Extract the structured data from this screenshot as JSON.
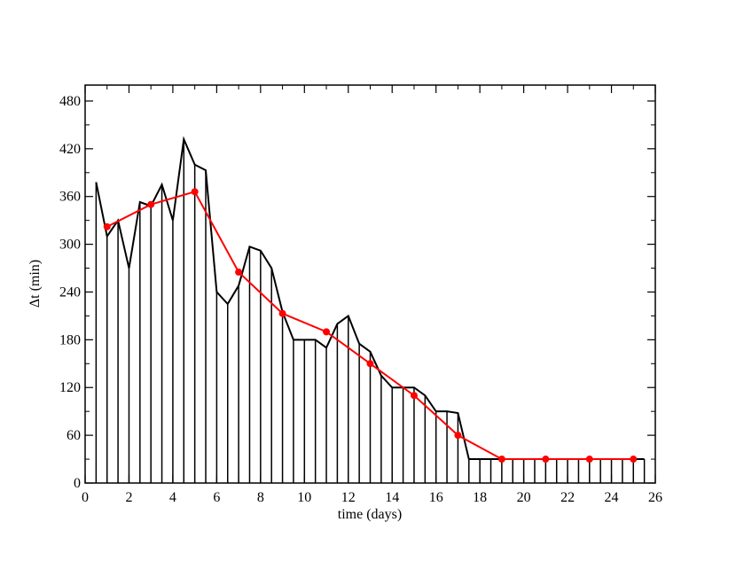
{
  "chart_data": {
    "type": "line",
    "title": "",
    "xlabel": "time (days)",
    "ylabel": "Δt (min)",
    "xlim": [
      0,
      26
    ],
    "ylim": [
      0,
      500
    ],
    "xticks": [
      0,
      2,
      4,
      6,
      8,
      10,
      12,
      14,
      16,
      18,
      20,
      22,
      24,
      26
    ],
    "yticks": [
      0,
      60,
      120,
      180,
      240,
      300,
      360,
      420,
      480
    ],
    "grid": false,
    "legend": "none",
    "series": [
      {
        "style": "line with vertical drop lines",
        "color": "#000000",
        "x": [
          0.5,
          1.0,
          1.5,
          2.0,
          2.5,
          3.0,
          3.5,
          4.0,
          4.5,
          5.0,
          5.5,
          6.0,
          6.5,
          7.0,
          7.5,
          8.0,
          8.5,
          9.0,
          9.5,
          10.0,
          10.5,
          11.0,
          11.5,
          12.0,
          12.5,
          13.0,
          13.5,
          14.0,
          14.5,
          15.0,
          15.5,
          16.0,
          16.5,
          17.0,
          17.5,
          18.0,
          18.5,
          19.0,
          19.5,
          20.0,
          20.5,
          21.0,
          21.5,
          22.0,
          22.5,
          23.0,
          23.5,
          24.0,
          24.5,
          25.0,
          25.5
        ],
        "y": [
          378,
          310,
          330,
          270,
          353,
          348,
          375,
          330,
          432,
          400,
          393,
          240,
          225,
          248,
          297,
          292,
          270,
          215,
          180,
          180,
          180,
          170,
          200,
          210,
          175,
          165,
          135,
          120,
          120,
          120,
          110,
          90,
          90,
          88,
          30,
          30,
          30,
          30,
          30,
          30,
          30,
          30,
          30,
          30,
          30,
          30,
          30,
          30,
          30,
          30,
          30
        ]
      },
      {
        "style": "line with markers",
        "color": "#ff0000",
        "x": [
          1,
          3,
          5,
          7,
          9,
          11,
          13,
          15,
          17,
          19,
          21,
          23,
          25
        ],
        "y": [
          322,
          350,
          366,
          265,
          213,
          190,
          150,
          110,
          60,
          30,
          30,
          30,
          30
        ]
      }
    ]
  }
}
